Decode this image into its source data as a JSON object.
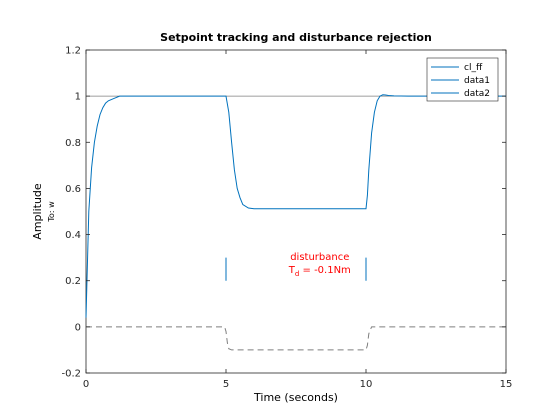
{
  "chart_data": {
    "type": "line",
    "title": "Setpoint tracking and disturbance rejection",
    "xlabel": "Time (seconds)",
    "ylabel": "Amplitude",
    "ylabel_sub": "To: w",
    "xlim": [
      0,
      15
    ],
    "ylim": [
      -0.2,
      1.2
    ],
    "xticks": [
      "0",
      "5",
      "10",
      "15"
    ],
    "yticks": [
      "-0.2",
      "0",
      "0.2",
      "0.4",
      "0.6",
      "0.8",
      "1",
      "1.2"
    ],
    "grid": false,
    "legend_position": "top-right",
    "legend": [
      "cl_ff",
      "data1",
      "data2"
    ],
    "colors": {
      "series": "#0072bd",
      "reference": "#7f7f7f",
      "annotation": "#ff0000"
    },
    "series": [
      {
        "name": "cl_ff",
        "style": "solid",
        "x": [
          0,
          0.1,
          0.2,
          0.3,
          0.4,
          0.5,
          0.6,
          0.7,
          0.8,
          1.0,
          1.2,
          1.5,
          2.0,
          3.0,
          4.0,
          4.95,
          5.0,
          5.1,
          5.2,
          5.3,
          5.4,
          5.5,
          5.6,
          5.8,
          6.0,
          6.5,
          7.0,
          8.0,
          9.0,
          9.95,
          10.0,
          10.05,
          10.1,
          10.2,
          10.3,
          10.4,
          10.5,
          10.6,
          10.7,
          10.8,
          11.0,
          11.5,
          12.0,
          13.0,
          14.0,
          15.0
        ],
        "y": [
          0.04,
          0.5,
          0.69,
          0.8,
          0.87,
          0.92,
          0.95,
          0.97,
          0.98,
          0.99,
          1.0,
          1.0,
          1.0,
          1.0,
          1.0,
          1.0,
          1.0,
          0.93,
          0.8,
          0.68,
          0.6,
          0.56,
          0.53,
          0.515,
          0.512,
          0.512,
          0.512,
          0.512,
          0.512,
          0.512,
          0.512,
          0.57,
          0.68,
          0.84,
          0.93,
          0.98,
          1.0,
          1.006,
          1.005,
          1.003,
          1.001,
          1.0,
          1.0,
          1.0,
          1.0,
          1.0
        ]
      },
      {
        "name": "data1",
        "style": "solid",
        "x": [
          0,
          15
        ],
        "y": [
          1,
          1
        ]
      },
      {
        "name": "data2",
        "style": "dashed",
        "x": [
          0,
          4.95,
          5.0,
          5.05,
          5.1,
          5.2,
          10.0,
          10.05,
          10.1,
          10.2,
          15.0
        ],
        "y": [
          0,
          0,
          -0.02,
          -0.07,
          -0.095,
          -0.1,
          -0.1,
          -0.08,
          -0.03,
          0,
          0
        ]
      }
    ],
    "markers": [
      {
        "x": 5,
        "y_range": [
          0.2,
          0.3
        ]
      },
      {
        "x": 10,
        "y_range": [
          0.2,
          0.3
        ]
      }
    ],
    "annotation": {
      "line1": "disturbance",
      "line2_main": "T",
      "line2_sub": "d",
      "line2_rest": " = -0.1Nm",
      "x": 8.35,
      "y": 0.29
    }
  }
}
